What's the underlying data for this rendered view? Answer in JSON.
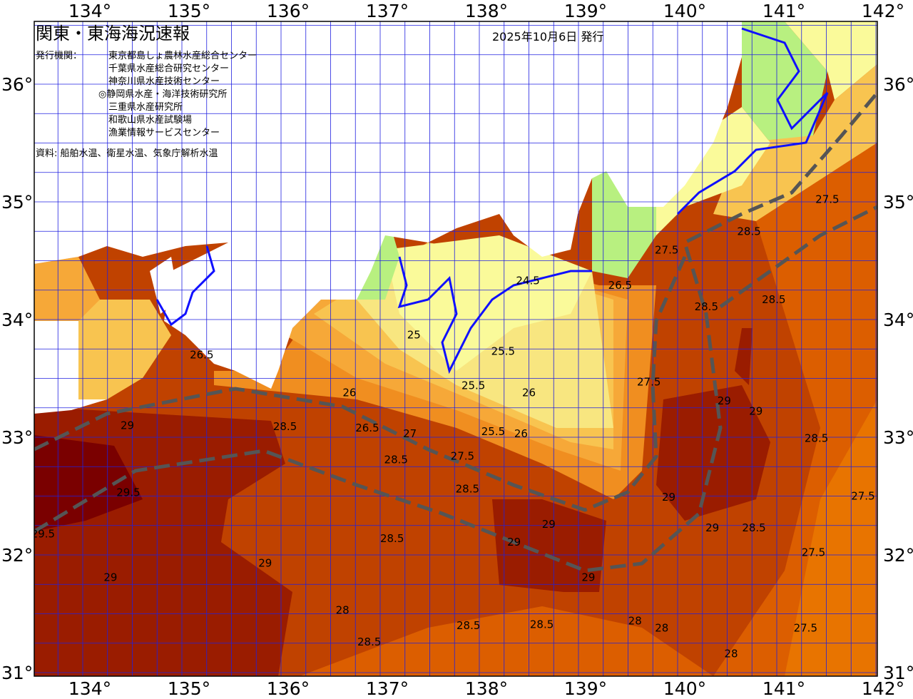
{
  "header": {
    "title": "関東・東海海況速報",
    "date": "2025年10月6日 発行",
    "agency_label": "発行機関：",
    "agencies": [
      "東京都島しょ農林水産総合センター",
      "千葉県水産総合研究センター",
      "神奈川県水産技術センター",
      "◎静岡県水産・海洋技術研究所",
      "三重県水産研究所",
      "和歌山県水産試験場",
      "漁業情報サービスセンター"
    ],
    "source": "資料: 船舶水温、衛星水温、気象庁解析水温"
  },
  "axes": {
    "lon_ticks": [
      "134°",
      "135°",
      "136°",
      "137°",
      "138°",
      "139°",
      "140°",
      "141°",
      "142°"
    ],
    "lat_ticks": [
      "36°",
      "35°",
      "34°",
      "33°",
      "32°",
      "31°"
    ],
    "lon_range": [
      133.5,
      142
    ],
    "lat_range": [
      31,
      36.5
    ]
  },
  "colors": {
    "t29_5": "#7a0000",
    "t29": "#9a1c00",
    "t28_5": "#c04200",
    "t28": "#dc5e00",
    "t27_5": "#e87400",
    "t27": "#f08e20",
    "t26_5": "#f6a838",
    "t26": "#f8c450",
    "t25_5": "#f8e680",
    "t25": "#fafa9a",
    "t24": "#b8f080",
    "land": "#ffffff",
    "grid": "#2020e0",
    "kuroshio": "#555555"
  },
  "isotherm_labels": [
    {
      "t": "26.5",
      "lon": 135.2,
      "lat": 33.7
    },
    {
      "t": "25.5",
      "lon": 138.24,
      "lat": 33.73
    },
    {
      "t": "25.5",
      "lon": 137.94,
      "lat": 33.44
    },
    {
      "t": "26",
      "lon": 138.5,
      "lat": 33.38
    },
    {
      "t": "25.5",
      "lon": 138.14,
      "lat": 33.05
    },
    {
      "t": "27.5",
      "lon": 139.71,
      "lat": 33.47
    },
    {
      "t": "28.5",
      "lon": 141.4,
      "lat": 32.99
    },
    {
      "t": "28.5",
      "lon": 140.97,
      "lat": 34.17
    },
    {
      "t": "28.5",
      "lon": 140.29,
      "lat": 34.11
    },
    {
      "t": "25",
      "lon": 137.34,
      "lat": 33.87
    },
    {
      "t": "24.5",
      "lon": 138.49,
      "lat": 34.33
    },
    {
      "t": "28.5",
      "lon": 137.89,
      "lat": 31.4
    },
    {
      "t": "28.5",
      "lon": 136.89,
      "lat": 31.26
    },
    {
      "t": "29",
      "lon": 135.84,
      "lat": 31.93
    },
    {
      "t": "29.5",
      "lon": 134.46,
      "lat": 32.53
    },
    {
      "t": "29.5",
      "lon": 133.6,
      "lat": 32.18
    },
    {
      "t": "29",
      "lon": 134.45,
      "lat": 33.1
    },
    {
      "t": "28.5",
      "lon": 136.04,
      "lat": 33.09
    },
    {
      "t": "28.5",
      "lon": 137.16,
      "lat": 32.81
    },
    {
      "t": "28.5",
      "lon": 137.88,
      "lat": 32.56
    },
    {
      "t": "29",
      "lon": 140.47,
      "lat": 33.31
    },
    {
      "t": "29",
      "lon": 140.79,
      "lat": 33.22
    },
    {
      "t": "29",
      "lon": 139.91,
      "lat": 32.49
    },
    {
      "t": "29",
      "lon": 140.35,
      "lat": 32.23
    },
    {
      "t": "28.5",
      "lon": 140.77,
      "lat": 32.23
    },
    {
      "t": "27.5",
      "lon": 141.37,
      "lat": 32.02
    },
    {
      "t": "27.5",
      "lon": 141.29,
      "lat": 31.38
    },
    {
      "t": "27.5",
      "lon": 141.87,
      "lat": 32.5
    },
    {
      "t": "28",
      "lon": 140.54,
      "lat": 31.16
    },
    {
      "t": "28",
      "lon": 139.84,
      "lat": 31.38
    },
    {
      "t": "28",
      "lon": 139.57,
      "lat": 31.44
    },
    {
      "t": "28.5",
      "lon": 138.63,
      "lat": 31.41
    },
    {
      "t": "29",
      "lon": 134.28,
      "lat": 31.81
    },
    {
      "t": "28",
      "lon": 136.62,
      "lat": 31.53
    },
    {
      "t": "28.5",
      "lon": 137.12,
      "lat": 32.14
    },
    {
      "t": "29",
      "lon": 138.35,
      "lat": 32.11
    },
    {
      "t": "29",
      "lon": 139.1,
      "lat": 31.81
    },
    {
      "t": "29",
      "lon": 138.7,
      "lat": 32.26
    },
    {
      "t": "26.5",
      "lon": 139.42,
      "lat": 34.29
    },
    {
      "t": "27.5",
      "lon": 141.51,
      "lat": 35.02
    },
    {
      "t": "28.5",
      "lon": 140.72,
      "lat": 34.75
    },
    {
      "t": "27.5",
      "lon": 139.89,
      "lat": 34.59
    },
    {
      "t": "26",
      "lon": 136.69,
      "lat": 33.38
    },
    {
      "t": "26.5",
      "lon": 136.87,
      "lat": 33.08
    },
    {
      "t": "26",
      "lon": 138.42,
      "lat": 33.03
    },
    {
      "t": "27",
      "lon": 137.3,
      "lat": 33.03
    },
    {
      "t": "27.5",
      "lon": 137.83,
      "lat": 32.84
    }
  ]
}
